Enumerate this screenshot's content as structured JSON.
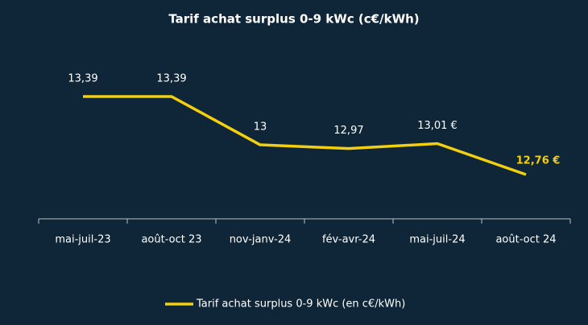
{
  "chart_data": {
    "type": "line",
    "title": "Tarif achat surplus 0-9 kWc (c€/kWh)",
    "categories": [
      "mai-juil-23",
      "août-oct 23",
      "nov-janv-24",
      "fév-avr-24",
      "mai-juil-24",
      "août-oct 24"
    ],
    "series": [
      {
        "name": "Tarif achat surplus 0-9 kWc (en c€/kWh)",
        "color": "#f2cf0f",
        "values": [
          13.39,
          13.39,
          13,
          12.97,
          13.01,
          12.76
        ],
        "value_labels": [
          "13,39",
          "13,39",
          "13",
          "12,97",
          "13,01 €",
          "12,76 €"
        ]
      }
    ]
  }
}
